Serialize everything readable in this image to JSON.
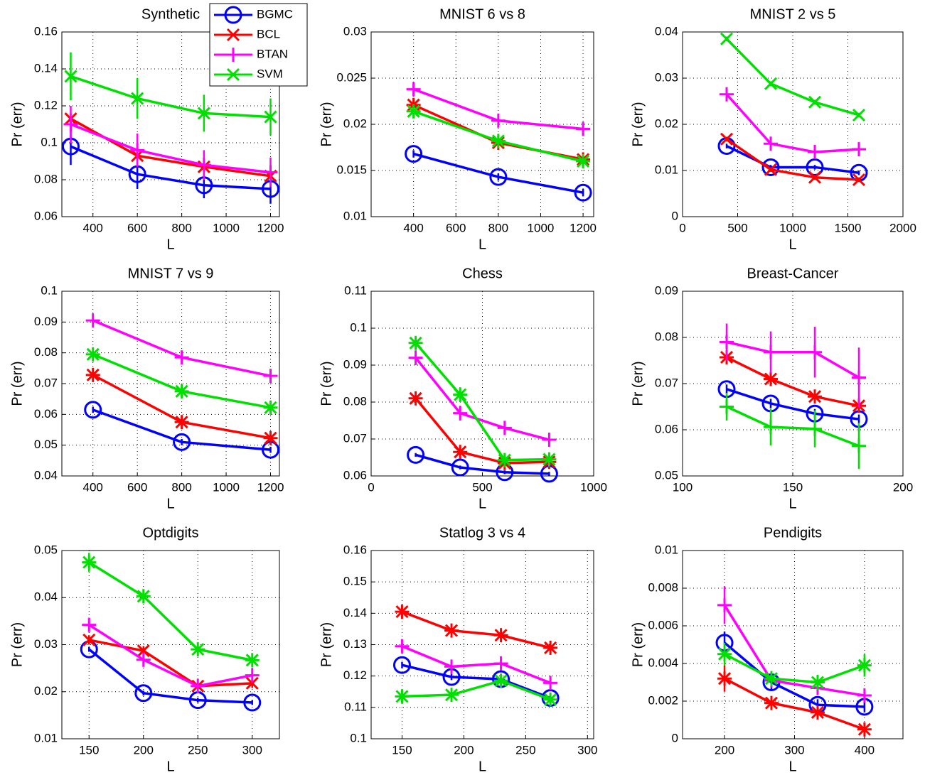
{
  "chart_data": [
    {
      "type": "line",
      "title": "Synthetic",
      "xlabel": "L",
      "ylabel": "Pr (err)",
      "grid": true,
      "legend": "upper right",
      "x": [
        300,
        600,
        900,
        1200
      ],
      "xlim": [
        260,
        1240
      ],
      "xticks": [
        400,
        600,
        800,
        1000,
        1200
      ],
      "ylim": [
        0.06,
        0.16
      ],
      "yticks": [
        0.06,
        0.08,
        0.1,
        0.12,
        0.14,
        0.16
      ],
      "series": [
        {
          "name": "BGMC",
          "color": "#0000ff",
          "marker": "circle",
          "values": [
            0.098,
            0.083,
            0.077,
            0.075
          ],
          "errors": [
            0.01,
            0.008,
            0.007,
            0.008
          ]
        },
        {
          "name": "BCL",
          "color": "#ff0000",
          "marker": "x",
          "values": [
            0.113,
            0.093,
            0.087,
            0.082
          ],
          "errors": [
            0.003,
            0.003,
            0.003,
            0.003
          ]
        },
        {
          "name": "BTAN",
          "color": "#ff00ff",
          "marker": "plus",
          "values": [
            0.11,
            0.096,
            0.088,
            0.084
          ],
          "errors": [
            0.01,
            0.009,
            0.008,
            0.008
          ]
        },
        {
          "name": "SVM",
          "color": "#00e000",
          "marker": "x",
          "values": [
            0.136,
            0.124,
            0.116,
            0.114
          ],
          "errors": [
            0.013,
            0.011,
            0.01,
            0.01
          ]
        }
      ]
    },
    {
      "type": "line",
      "title": "MNIST 6 vs 8",
      "xlabel": "L",
      "ylabel": "Pr (err)",
      "grid": true,
      "x": [
        400,
        800,
        1200
      ],
      "xlim": [
        200,
        1250
      ],
      "xticks": [
        400,
        600,
        800,
        1000,
        1200
      ],
      "ylim": [
        0.01,
        0.03
      ],
      "yticks": [
        0.01,
        0.015,
        0.02,
        0.025,
        0.03
      ],
      "series": [
        {
          "color": "#0000ff",
          "marker": "circle",
          "values": [
            0.0168,
            0.0143,
            0.0126
          ],
          "errors": [
            0.0004,
            0.0004,
            0.0004
          ]
        },
        {
          "color": "#ff0000",
          "marker": "star",
          "values": [
            0.0221,
            0.018,
            0.0162
          ],
          "errors": [
            0.0004,
            0.0004,
            0.0004
          ]
        },
        {
          "color": "#ff00ff",
          "marker": "plus",
          "values": [
            0.0238,
            0.0204,
            0.0195
          ],
          "errors": [
            0.0006,
            0.0006,
            0.0006
          ]
        },
        {
          "color": "#00e000",
          "marker": "star",
          "values": [
            0.0214,
            0.0182,
            0.016
          ],
          "errors": [
            0.0003,
            0.0003,
            0.0003
          ]
        }
      ]
    },
    {
      "type": "line",
      "title": "MNIST 2 vs 5",
      "xlabel": "L",
      "ylabel": "Pr (err)",
      "grid": true,
      "x": [
        400,
        800,
        1200,
        1600
      ],
      "xlim": [
        0,
        2000
      ],
      "xticks": [
        0,
        500,
        1000,
        1500,
        2000
      ],
      "ylim": [
        0,
        0.04
      ],
      "yticks": [
        0,
        0.01,
        0.02,
        0.03,
        0.04
      ],
      "series": [
        {
          "color": "#0000ff",
          "marker": "circle",
          "values": [
            0.0153,
            0.0107,
            0.0107,
            0.0095
          ],
          "errors": [
            0.0005,
            0.0005,
            0.0005,
            0.0005
          ]
        },
        {
          "color": "#ff0000",
          "marker": "x",
          "values": [
            0.0168,
            0.0102,
            0.0085,
            0.008
          ],
          "errors": [
            0.0005,
            0.0005,
            0.0005,
            0.0005
          ]
        },
        {
          "color": "#ff00ff",
          "marker": "plus",
          "values": [
            0.0265,
            0.0158,
            0.014,
            0.0146
          ],
          "errors": [
            0.0008,
            0.0008,
            0.0008,
            0.0008
          ]
        },
        {
          "color": "#00e000",
          "marker": "x",
          "values": [
            0.0385,
            0.0288,
            0.0248,
            0.022
          ],
          "errors": [
            0.0005,
            0.0005,
            0.0005,
            0.0005
          ]
        }
      ]
    },
    {
      "type": "line",
      "title": "MNIST 7 vs 9",
      "xlabel": "L",
      "ylabel": "Pr (err)",
      "grid": true,
      "x": [
        400,
        800,
        1200
      ],
      "xlim": [
        260,
        1240
      ],
      "xticks": [
        400,
        600,
        800,
        1000,
        1200
      ],
      "ylim": [
        0.04,
        0.1
      ],
      "yticks": [
        0.04,
        0.05,
        0.06,
        0.07,
        0.08,
        0.09,
        0.1
      ],
      "series": [
        {
          "color": "#0000ff",
          "marker": "circle",
          "values": [
            0.0615,
            0.051,
            0.0485
          ],
          "errors": [
            0.001,
            0.001,
            0.001
          ]
        },
        {
          "color": "#ff0000",
          "marker": "star",
          "values": [
            0.0728,
            0.0575,
            0.0523
          ],
          "errors": [
            0.001,
            0.001,
            0.001
          ]
        },
        {
          "color": "#ff00ff",
          "marker": "plus",
          "values": [
            0.0905,
            0.0785,
            0.0725
          ],
          "errors": [
            0.002,
            0.002,
            0.002
          ]
        },
        {
          "color": "#00e000",
          "marker": "star",
          "values": [
            0.0795,
            0.0675,
            0.0622
          ],
          "errors": [
            0.001,
            0.001,
            0.001
          ]
        }
      ]
    },
    {
      "type": "line",
      "title": "Chess",
      "xlabel": "L",
      "ylabel": "Pr (err)",
      "grid": true,
      "x": [
        200,
        400,
        600,
        800
      ],
      "xlim": [
        0,
        1000
      ],
      "xticks": [
        0,
        500,
        1000
      ],
      "ylim": [
        0.06,
        0.11
      ],
      "yticks": [
        0.06,
        0.07,
        0.08,
        0.09,
        0.1,
        0.11
      ],
      "series": [
        {
          "color": "#0000ff",
          "marker": "circle",
          "values": [
            0.0657,
            0.0623,
            0.061,
            0.0606
          ],
          "errors": [
            0.0005,
            0.0005,
            0.0005,
            0.0005
          ]
        },
        {
          "color": "#ff0000",
          "marker": "star",
          "values": [
            0.081,
            0.0665,
            0.0635,
            0.0638
          ],
          "errors": [
            0.001,
            0.001,
            0.001,
            0.001
          ]
        },
        {
          "color": "#ff00ff",
          "marker": "plus",
          "values": [
            0.092,
            0.077,
            0.073,
            0.0698
          ],
          "errors": [
            0.002,
            0.002,
            0.001,
            0.001
          ]
        },
        {
          "color": "#00e000",
          "marker": "star",
          "values": [
            0.096,
            0.082,
            0.0643,
            0.0645
          ],
          "errors": [
            0.001,
            0.002,
            0.001,
            0.001
          ]
        }
      ]
    },
    {
      "type": "line",
      "title": "Breast-Cancer",
      "xlabel": "L",
      "ylabel": "Pr (err)",
      "grid": true,
      "x": [
        120,
        140,
        160,
        180
      ],
      "xlim": [
        100,
        200
      ],
      "xticks": [
        100,
        150,
        200
      ],
      "ylim": [
        0.05,
        0.09
      ],
      "yticks": [
        0.05,
        0.06,
        0.07,
        0.08,
        0.09
      ],
      "series": [
        {
          "color": "#0000ff",
          "marker": "circle",
          "values": [
            0.0688,
            0.0657,
            0.0635,
            0.0623
          ],
          "errors": [
            0.001,
            0.001,
            0.001,
            0.001
          ]
        },
        {
          "color": "#ff0000",
          "marker": "star",
          "values": [
            0.0757,
            0.071,
            0.0672,
            0.0652
          ],
          "errors": [
            0.001,
            0.001,
            0.001,
            0.001
          ]
        },
        {
          "color": "#ff00ff",
          "marker": "plus",
          "values": [
            0.079,
            0.0768,
            0.0768,
            0.0713
          ],
          "errors": [
            0.004,
            0.0045,
            0.0055,
            0.0065
          ]
        },
        {
          "color": "#00e000",
          "marker": "plus",
          "values": [
            0.065,
            0.0606,
            0.0602,
            0.0565
          ],
          "errors": [
            0.003,
            0.004,
            0.004,
            0.005
          ]
        }
      ]
    },
    {
      "type": "line",
      "title": "Optdigits",
      "xlabel": "L",
      "ylabel": "Pr (err)",
      "grid": true,
      "x": [
        150,
        200,
        250,
        300
      ],
      "xlim": [
        125,
        325
      ],
      "xticks": [
        150,
        200,
        250,
        300
      ],
      "ylim": [
        0.01,
        0.05
      ],
      "yticks": [
        0.01,
        0.02,
        0.03,
        0.04,
        0.05
      ],
      "series": [
        {
          "color": "#0000ff",
          "marker": "circle",
          "values": [
            0.029,
            0.0197,
            0.0182,
            0.0177
          ],
          "errors": [
            0.0005,
            0.0005,
            0.0005,
            0.0005
          ]
        },
        {
          "color": "#ff0000",
          "marker": "x",
          "values": [
            0.031,
            0.0287,
            0.0212,
            0.0218
          ],
          "errors": [
            0.001,
            0.001,
            0.001,
            0.001
          ]
        },
        {
          "color": "#ff00ff",
          "marker": "plus",
          "values": [
            0.0342,
            0.0268,
            0.0212,
            0.0235
          ],
          "errors": [
            0.0015,
            0.0015,
            0.001,
            0.001
          ]
        },
        {
          "color": "#00e000",
          "marker": "star",
          "values": [
            0.0475,
            0.0403,
            0.029,
            0.0267
          ],
          "errors": [
            0.002,
            0.0015,
            0.0012,
            0.0015
          ]
        }
      ]
    },
    {
      "type": "line",
      "title": "Statlog 3 vs 4",
      "xlabel": "L",
      "ylabel": "Pr (err)",
      "grid": true,
      "x": [
        150,
        190,
        230,
        270
      ],
      "xlim": [
        125,
        305
      ],
      "xticks": [
        150,
        200,
        250,
        300
      ],
      "ylim": [
        0.1,
        0.16
      ],
      "yticks": [
        0.1,
        0.11,
        0.12,
        0.13,
        0.14,
        0.15,
        0.16
      ],
      "series": [
        {
          "color": "#0000ff",
          "marker": "circle",
          "values": [
            0.1235,
            0.1197,
            0.119,
            0.113
          ],
          "errors": [
            0.001,
            0.001,
            0.001,
            0.001
          ]
        },
        {
          "color": "#ff0000",
          "marker": "star",
          "values": [
            0.1405,
            0.1345,
            0.133,
            0.129
          ],
          "errors": [
            0.001,
            0.001,
            0.001,
            0.001
          ]
        },
        {
          "color": "#ff00ff",
          "marker": "plus",
          "values": [
            0.1295,
            0.123,
            0.124,
            0.1178
          ],
          "errors": [
            0.002,
            0.002,
            0.002,
            0.002
          ]
        },
        {
          "color": "#00e000",
          "marker": "star",
          "values": [
            0.1135,
            0.114,
            0.1185,
            0.1125
          ],
          "errors": [
            0.001,
            0.001,
            0.001,
            0.002
          ]
        }
      ]
    },
    {
      "type": "line",
      "title": "Pendigits",
      "xlabel": "L",
      "ylabel": "Pr (err)",
      "grid": true,
      "x": [
        200,
        267,
        333,
        400
      ],
      "xlim": [
        140,
        455
      ],
      "xticks": [
        200,
        300,
        400
      ],
      "ylim": [
        0,
        0.01
      ],
      "yticks": [
        0,
        0.002,
        0.004,
        0.006,
        0.008,
        0.01
      ],
      "series": [
        {
          "color": "#0000ff",
          "marker": "circle",
          "values": [
            0.0051,
            0.003,
            0.0018,
            0.0017
          ],
          "errors": [
            0.0006,
            0.0004,
            0.0003,
            0.0003
          ]
        },
        {
          "color": "#ff0000",
          "marker": "star",
          "values": [
            0.0032,
            0.0019,
            0.0014,
            0.0005
          ],
          "errors": [
            0.0007,
            0.0003,
            0.0003,
            0.0002
          ]
        },
        {
          "color": "#ff00ff",
          "marker": "plus",
          "values": [
            0.0071,
            0.0031,
            0.0027,
            0.0023
          ],
          "errors": [
            0.001,
            0.0003,
            0.0003,
            0.0003
          ]
        },
        {
          "color": "#00e000",
          "marker": "star",
          "values": [
            0.0045,
            0.0032,
            0.003,
            0.0039
          ],
          "errors": [
            0.0006,
            0.0004,
            0.0004,
            0.0006
          ]
        }
      ]
    }
  ]
}
